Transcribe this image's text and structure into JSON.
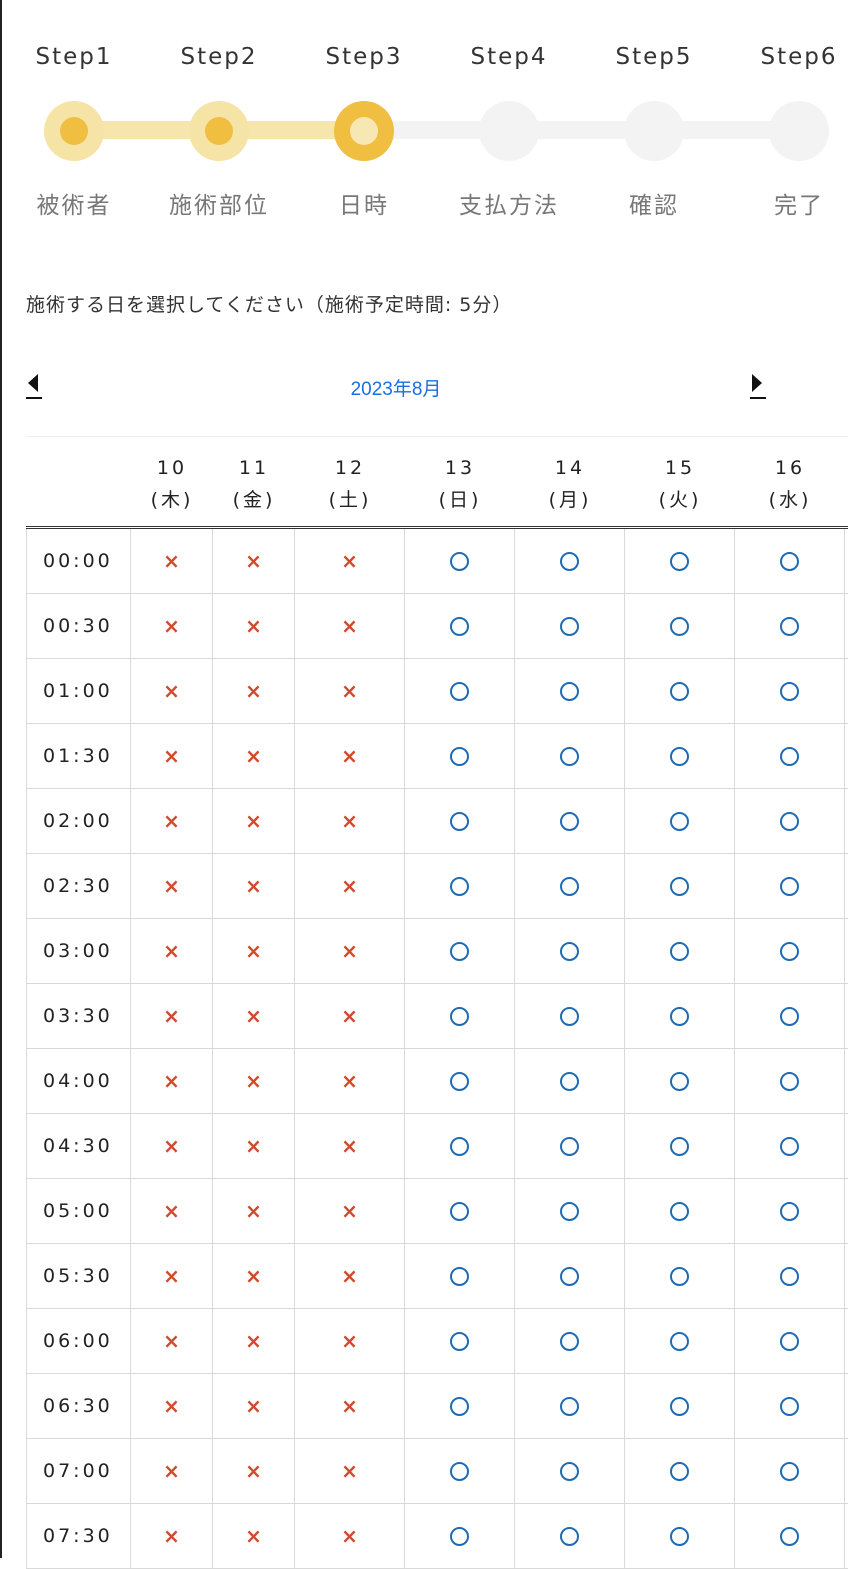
{
  "steps": [
    {
      "label": "Step1",
      "name": "被術者",
      "state": "done"
    },
    {
      "label": "Step2",
      "name": "施術部位",
      "state": "done"
    },
    {
      "label": "Step3",
      "name": "日時",
      "state": "current"
    },
    {
      "label": "Step4",
      "name": "支払方法",
      "state": "todo"
    },
    {
      "label": "Step5",
      "name": "確認",
      "state": "todo"
    },
    {
      "label": "Step6",
      "name": "完了",
      "state": "todo"
    }
  ],
  "instruction": "施術する日を選択してください（施術予定時間: 5分）",
  "month": "2023年8月",
  "days": [
    {
      "day": "10",
      "weekday": "(木)"
    },
    {
      "day": "11",
      "weekday": "(金)"
    },
    {
      "day": "12",
      "weekday": "(土)"
    },
    {
      "day": "13",
      "weekday": "(日)"
    },
    {
      "day": "14",
      "weekday": "(月)"
    },
    {
      "day": "15",
      "weekday": "(火)"
    },
    {
      "day": "16",
      "weekday": "(水)"
    }
  ],
  "times": [
    "00:00",
    "00:30",
    "01:00",
    "01:30",
    "02:00",
    "02:30",
    "03:00",
    "03:30",
    "04:00",
    "04:30",
    "05:00",
    "05:30",
    "06:00",
    "06:30",
    "07:00",
    "07:30"
  ],
  "unavailable_symbol": "×",
  "availability": [
    "x",
    "x",
    "x",
    "o",
    "o",
    "o",
    "o"
  ],
  "colors": {
    "accent": "#f0be41",
    "unavailable": "#d24a2c",
    "available": "#1f6bb3",
    "link": "#1a6fe0"
  }
}
